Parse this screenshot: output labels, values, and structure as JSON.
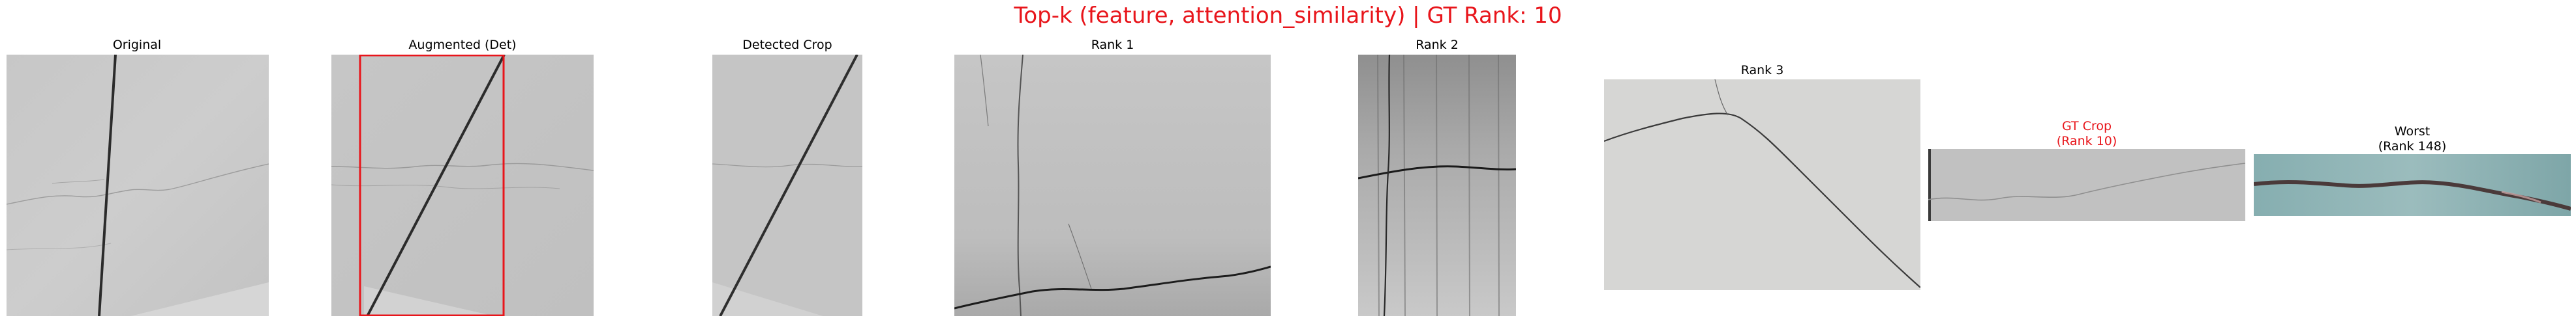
{
  "figure": {
    "title": "Top-k (feature, attention_similarity) | GT Rank: 10",
    "title_color": "#e8151b"
  },
  "panels": [
    {
      "id": "original",
      "title_lines": [
        "Original"
      ]
    },
    {
      "id": "augmented",
      "title_lines": [
        "Augmented (Det)"
      ],
      "box_color": "#e8151b"
    },
    {
      "id": "detected",
      "title_lines": [
        "Detected Crop"
      ]
    },
    {
      "id": "rank1",
      "title_lines": [
        "Rank 1"
      ]
    },
    {
      "id": "rank2",
      "title_lines": [
        "Rank 2"
      ]
    },
    {
      "id": "rank3",
      "title_lines": [
        "Rank 3"
      ]
    },
    {
      "id": "gt",
      "title_lines": [
        "GT Crop",
        "(Rank 10)"
      ],
      "title_color": "#e8151b"
    },
    {
      "id": "worst",
      "title_lines": [
        "Worst",
        "(Rank 148)"
      ]
    }
  ]
}
